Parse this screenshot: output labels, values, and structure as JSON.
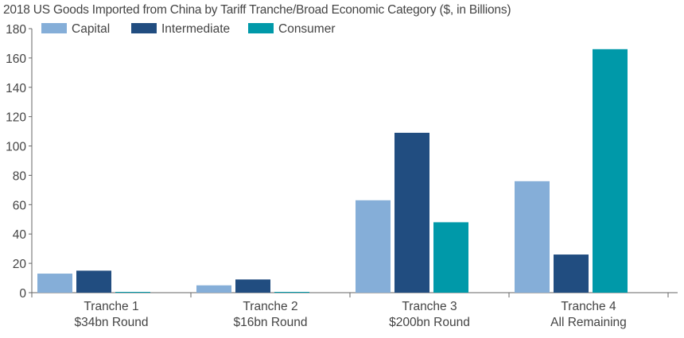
{
  "chart_data": {
    "type": "bar",
    "title": "2018 US Goods Imported from China by Tariff Tranche/Broad Economic Category ($, in Billions)",
    "xlabel": "",
    "ylabel": "",
    "ylim": [
      0,
      180
    ],
    "yticks": [
      "0",
      "20",
      "40",
      "60",
      "80",
      "100",
      "120",
      "140",
      "160",
      "180"
    ],
    "categories": [
      [
        "Tranche 1",
        "$34bn Round"
      ],
      [
        "Tranche 2",
        "$16bn Round"
      ],
      [
        "Tranche 3",
        "$200bn Round"
      ],
      [
        "Tranche 4",
        "All Remaining"
      ]
    ],
    "series": [
      {
        "name": "Capital",
        "color": "#85aed8",
        "values": [
          13,
          5,
          63,
          76
        ]
      },
      {
        "name": "Intermediate",
        "color": "#214d80",
        "values": [
          15,
          9,
          109,
          26
        ]
      },
      {
        "name": "Consumer",
        "color": "#0099a9",
        "values": [
          0.5,
          0.5,
          48,
          166
        ]
      }
    ],
    "legend": "top-left",
    "grid": false
  }
}
